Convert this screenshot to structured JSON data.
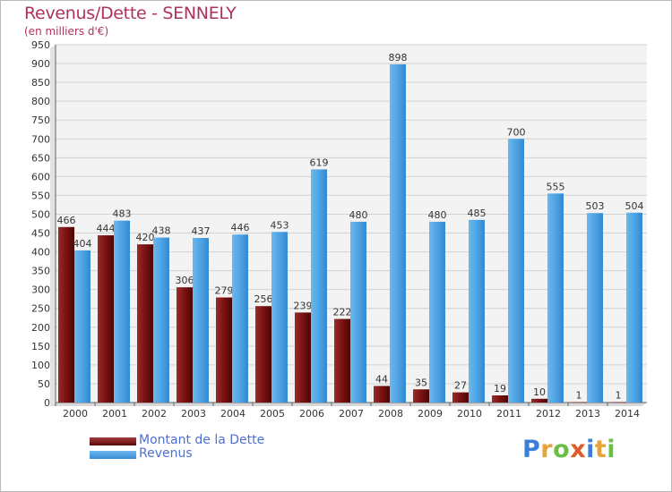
{
  "chart_data": {
    "type": "bar",
    "title": "Revenus/Dette - SENNELY",
    "subtitle": "(en milliers d'€)",
    "categories": [
      "2000",
      "2001",
      "2002",
      "2003",
      "2004",
      "2005",
      "2006",
      "2007",
      "2008",
      "2009",
      "2010",
      "2011",
      "2012",
      "2013",
      "2014"
    ],
    "series": [
      {
        "name": "Montant de la Dette",
        "color": "#7a1212",
        "values": [
          466,
          444,
          420,
          306,
          279,
          256,
          239,
          222,
          44,
          35,
          27,
          19,
          10,
          1,
          1
        ]
      },
      {
        "name": "Revenus",
        "color": "#4ea3e5",
        "values": [
          404,
          483,
          438,
          437,
          446,
          453,
          619,
          480,
          898,
          480,
          485,
          700,
          555,
          503,
          504
        ]
      }
    ],
    "ylim": [
      0,
      950
    ],
    "yticks": [
      0,
      50,
      100,
      150,
      200,
      250,
      300,
      350,
      400,
      450,
      500,
      550,
      600,
      650,
      700,
      750,
      800,
      850,
      900,
      950
    ],
    "grid": true,
    "legend_position": "bottom-left"
  },
  "brand": {
    "letters": [
      "P",
      "r",
      "o",
      "x",
      "i",
      "t",
      "i"
    ],
    "colors": [
      "#3d7fd6",
      "#e8a33a",
      "#6abf45",
      "#e05a2b",
      "#3d7fd6",
      "#e8a33a",
      "#6abf45"
    ]
  }
}
